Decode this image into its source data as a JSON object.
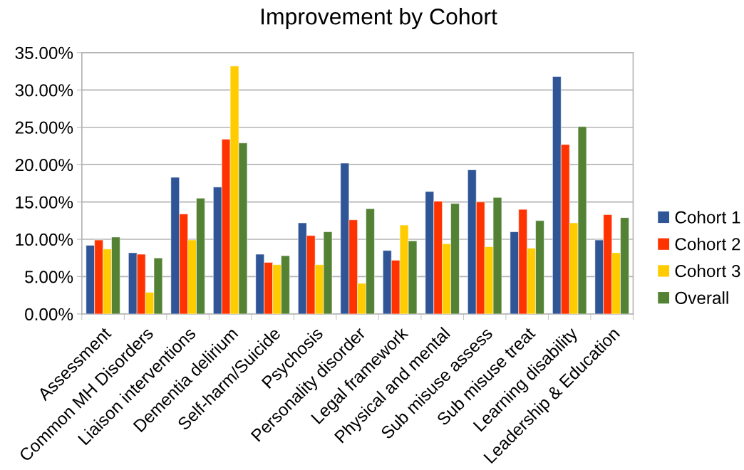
{
  "chart_data": {
    "type": "bar",
    "title": "Improvement by Cohort",
    "categories": [
      "Assessment",
      "Common MH Disorders",
      "Liaison interventions",
      "Dementia delirium",
      "Self-harm/Suicide",
      "Psychosis",
      "Personality disorder",
      "Legal framework",
      "Physical and mental",
      "Sub misuse assess",
      "Sub misuse treat",
      "Learning disability",
      "Leadership & Education"
    ],
    "series": [
      {
        "name": "Cohort 1",
        "color": "#2f5597",
        "values": [
          9.2,
          8.2,
          18.3,
          17.0,
          8.0,
          12.2,
          20.2,
          8.5,
          16.4,
          19.3,
          11.0,
          31.8,
          9.9
        ]
      },
      {
        "name": "Cohort 2",
        "color": "#ff3300",
        "values": [
          9.9,
          8.0,
          13.4,
          23.4,
          6.9,
          10.5,
          12.6,
          7.2,
          15.1,
          15.0,
          14.0,
          22.7,
          13.3
        ]
      },
      {
        "name": "Cohort 3",
        "color": "#ffcc00",
        "values": [
          8.7,
          2.9,
          9.9,
          33.2,
          6.6,
          6.6,
          4.1,
          11.9,
          9.4,
          9.0,
          8.8,
          12.2,
          8.2
        ]
      },
      {
        "name": "Overall",
        "color": "#548235",
        "values": [
          10.3,
          7.5,
          15.5,
          22.9,
          7.8,
          11.0,
          14.1,
          9.8,
          14.8,
          15.6,
          12.5,
          25.1,
          12.9
        ]
      }
    ],
    "ylim": [
      0,
      35
    ],
    "yticks": [
      {
        "value": 0,
        "label": "0.00%"
      },
      {
        "value": 5,
        "label": "5.00%"
      },
      {
        "value": 10,
        "label": "10.00%"
      },
      {
        "value": 15,
        "label": "15.00%"
      },
      {
        "value": 20,
        "label": "20.00%"
      },
      {
        "value": 25,
        "label": "25.00%"
      },
      {
        "value": 30,
        "label": "30.00%"
      },
      {
        "value": 35,
        "label": "35.00%"
      }
    ],
    "grid": "y",
    "legend": "right"
  }
}
